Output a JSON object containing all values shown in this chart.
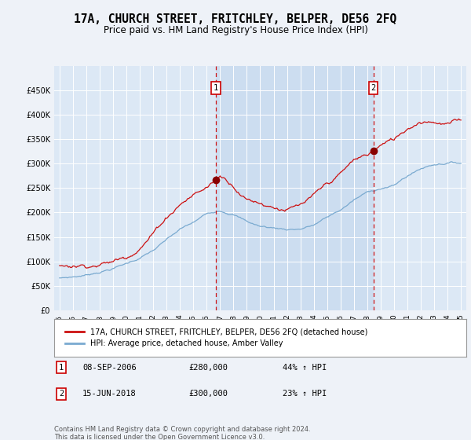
{
  "title": "17A, CHURCH STREET, FRITCHLEY, BELPER, DE56 2FQ",
  "subtitle": "Price paid vs. HM Land Registry's House Price Index (HPI)",
  "background_color": "#eef2f8",
  "plot_bg_color": "#dce8f5",
  "highlight_bg_color": "#ccddf0",
  "legend_label_red": "17A, CHURCH STREET, FRITCHLEY, BELPER, DE56 2FQ (detached house)",
  "legend_label_blue": "HPI: Average price, detached house, Amber Valley",
  "footer": "Contains HM Land Registry data © Crown copyright and database right 2024.\nThis data is licensed under the Open Government Licence v3.0.",
  "transactions": [
    {
      "num": 1,
      "date": "08-SEP-2006",
      "price": 280000,
      "hpi_pct": "44% ↑ HPI",
      "x": 2006.69
    },
    {
      "num": 2,
      "date": "15-JUN-2018",
      "price": 300000,
      "hpi_pct": "23% ↑ HPI",
      "x": 2018.46
    }
  ],
  "ylim": [
    0,
    500000
  ],
  "yticks": [
    0,
    50000,
    100000,
    150000,
    200000,
    250000,
    300000,
    350000,
    400000,
    450000
  ],
  "xlim_left": 1994.6,
  "xlim_right": 2025.4,
  "xtick_years": [
    1995,
    1996,
    1997,
    1998,
    1999,
    2000,
    2001,
    2002,
    2003,
    2004,
    2005,
    2006,
    2007,
    2008,
    2009,
    2010,
    2011,
    2012,
    2013,
    2014,
    2015,
    2016,
    2017,
    2018,
    2019,
    2020,
    2021,
    2022,
    2023,
    2024,
    2025
  ]
}
